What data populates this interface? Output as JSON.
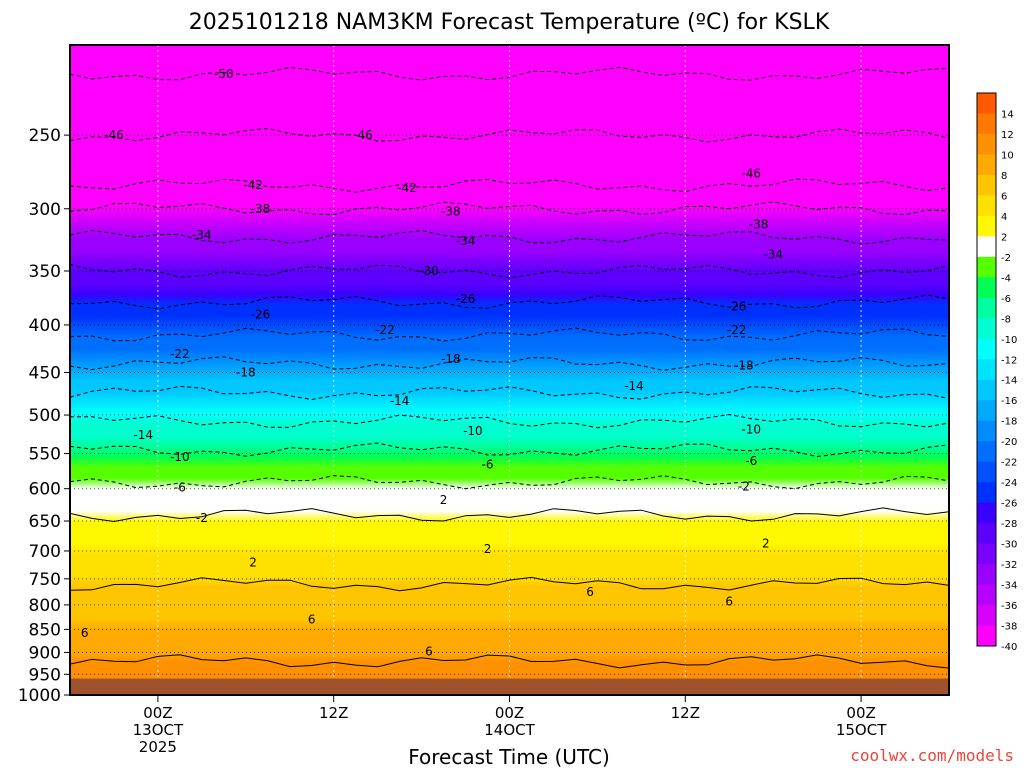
{
  "chart_data": {
    "type": "heatmap",
    "title": "2025101218 NAM3KM Forecast Temperature (ºC) for KSLK",
    "xlabel": "Forecast Time (UTC)",
    "ylabel": "",
    "x_ticks": [
      {
        "top": "00Z",
        "mid": "13OCT",
        "bot": "2025"
      },
      {
        "top": "12Z",
        "mid": "",
        "bot": ""
      },
      {
        "top": "00Z",
        "mid": "14OCT",
        "bot": ""
      },
      {
        "top": "12Z",
        "mid": "",
        "bot": ""
      },
      {
        "top": "00Z",
        "mid": "15OCT",
        "bot": ""
      }
    ],
    "x_tick_hours": [
      6,
      18,
      30,
      42,
      54
    ],
    "x_range_hours": [
      0,
      60
    ],
    "y_axis_log_pressure": true,
    "y_range_hpa": [
      1000,
      200
    ],
    "y_ticks": [
      "250",
      "300",
      "350",
      "400",
      "450",
      "500",
      "550",
      "600",
      "650",
      "700",
      "750",
      "800",
      "850",
      "900",
      "950",
      "1000"
    ],
    "surface_pressure_hpa": 960,
    "grid": true,
    "colorbar_labels": [
      "14",
      "12",
      "10",
      "8",
      "6",
      "4",
      "2",
      "-2",
      "-4",
      "-6",
      "-8",
      "-10",
      "-12",
      "-14",
      "-16",
      "-18",
      "-20",
      "-22",
      "-24",
      "-26",
      "-28",
      "-30",
      "-32",
      "-34",
      "-36",
      "-38",
      "-40"
    ],
    "colorbar_colors": [
      "#ff5a00",
      "#ff7800",
      "#ff9100",
      "#ffaa00",
      "#ffc500",
      "#ffe100",
      "#fff800",
      "#ffffff",
      "#55ff00",
      "#00ff55",
      "#00ff9f",
      "#00ffd0",
      "#00ffff",
      "#00e5ff",
      "#00c8ff",
      "#00aaff",
      "#008cff",
      "#006eff",
      "#0050ff",
      "#0030ff",
      "#3a00ff",
      "#5c00ff",
      "#7a00ff",
      "#9a00ff",
      "#b800ff",
      "#d800ff",
      "#ff00ff"
    ],
    "isotherm_profile": [
      {
        "t": -50,
        "p": 215
      },
      {
        "t": -46,
        "p": 250
      },
      {
        "t": -42,
        "p": 283
      },
      {
        "t": -38,
        "p": 300
      },
      {
        "t": -34,
        "p": 322
      },
      {
        "t": -30,
        "p": 350
      },
      {
        "t": -26,
        "p": 378
      },
      {
        "t": -22,
        "p": 410
      },
      {
        "t": -18,
        "p": 440
      },
      {
        "t": -14,
        "p": 473
      },
      {
        "t": -10,
        "p": 508
      },
      {
        "t": -6,
        "p": 545
      },
      {
        "t": -2,
        "p": 590
      },
      {
        "t": 2,
        "p": 640
      },
      {
        "t": 6,
        "p": 760
      },
      {
        "t": 10,
        "p": 920
      }
    ],
    "contour_labels": [
      {
        "text": "-50",
        "x": 10.5,
        "p": 215
      },
      {
        "text": "-46",
        "x": 3,
        "p": 250
      },
      {
        "text": "-46",
        "x": 20,
        "p": 250
      },
      {
        "text": "-46",
        "x": 46.5,
        "p": 275
      },
      {
        "text": "-42",
        "x": 12.5,
        "p": 283
      },
      {
        "text": "-42",
        "x": 23,
        "p": 285
      },
      {
        "text": "-38",
        "x": 13,
        "p": 300
      },
      {
        "text": "-38",
        "x": 26,
        "p": 302
      },
      {
        "text": "-38",
        "x": 47,
        "p": 312
      },
      {
        "text": "-34",
        "x": 9,
        "p": 320
      },
      {
        "text": "-34",
        "x": 27,
        "p": 325
      },
      {
        "text": "-34",
        "x": 48,
        "p": 336
      },
      {
        "text": "-30",
        "x": 24.5,
        "p": 350
      },
      {
        "text": "-26",
        "x": 13,
        "p": 390
      },
      {
        "text": "-26",
        "x": 27,
        "p": 375
      },
      {
        "text": "-26",
        "x": 45.5,
        "p": 382
      },
      {
        "text": "-22",
        "x": 7.5,
        "p": 430
      },
      {
        "text": "-22",
        "x": 21.5,
        "p": 405
      },
      {
        "text": "-22",
        "x": 45.5,
        "p": 405
      },
      {
        "text": "-18",
        "x": 12,
        "p": 450
      },
      {
        "text": "-18",
        "x": 26,
        "p": 435
      },
      {
        "text": "-18",
        "x": 46,
        "p": 442
      },
      {
        "text": "-14",
        "x": 5,
        "p": 525
      },
      {
        "text": "-14",
        "x": 22.5,
        "p": 483
      },
      {
        "text": "-14",
        "x": 38.5,
        "p": 465
      },
      {
        "text": "-10",
        "x": 7.5,
        "p": 555
      },
      {
        "text": "-10",
        "x": 27.5,
        "p": 520
      },
      {
        "text": "-10",
        "x": 46.5,
        "p": 518
      },
      {
        "text": "-6",
        "x": 7.5,
        "p": 598
      },
      {
        "text": "-6",
        "x": 28.5,
        "p": 565
      },
      {
        "text": "-6",
        "x": 46.5,
        "p": 560
      },
      {
        "text": "-2",
        "x": 9,
        "p": 645
      },
      {
        "text": "-2",
        "x": 46,
        "p": 597
      },
      {
        "text": "2",
        "x": 25.5,
        "p": 617
      },
      {
        "text": "2",
        "x": 12.5,
        "p": 720
      },
      {
        "text": "2",
        "x": 28.5,
        "p": 697
      },
      {
        "text": "2",
        "x": 47.5,
        "p": 687
      },
      {
        "text": "6",
        "x": 1,
        "p": 858
      },
      {
        "text": "6",
        "x": 16.5,
        "p": 830
      },
      {
        "text": "6",
        "x": 35.5,
        "p": 775
      },
      {
        "text": "6",
        "x": 45,
        "p": 793
      },
      {
        "text": "6",
        "x": 24.5,
        "p": 898
      }
    ]
  },
  "watermark": "coolwx.com/models"
}
